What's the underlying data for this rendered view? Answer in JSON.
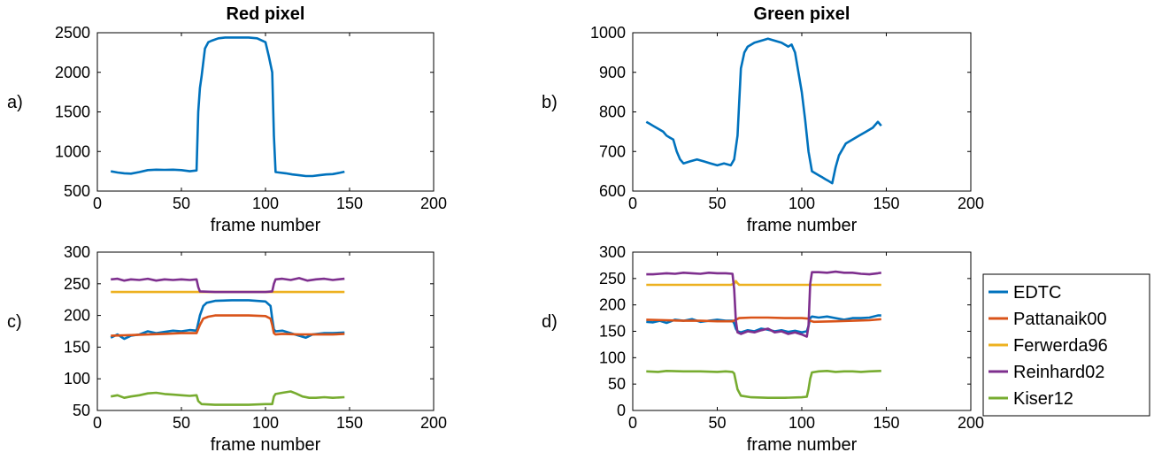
{
  "chart_data": [
    {
      "type": "line",
      "panel": "a)",
      "title": "Red pixel",
      "xlabel": "frame number",
      "ylabel": "",
      "xlim": [
        0,
        200
      ],
      "ylim": [
        500,
        2500
      ],
      "xticks": [
        0,
        50,
        100,
        150,
        200
      ],
      "yticks": [
        500,
        1000,
        1500,
        2000,
        2500
      ],
      "grid": false,
      "series": [
        {
          "color": "#0072BD",
          "x": [
            8,
            12,
            16,
            20,
            25,
            30,
            35,
            40,
            45,
            50,
            55,
            59,
            60,
            61,
            62,
            64,
            66,
            68,
            72,
            76,
            80,
            85,
            90,
            95,
            100,
            102,
            104,
            105,
            106,
            108,
            112,
            116,
            120,
            124,
            128,
            132,
            136,
            140,
            144,
            147
          ],
          "y": [
            750,
            735,
            725,
            720,
            740,
            765,
            770,
            768,
            770,
            765,
            750,
            760,
            1500,
            1800,
            1950,
            2300,
            2380,
            2400,
            2430,
            2440,
            2440,
            2440,
            2440,
            2430,
            2380,
            2200,
            2000,
            1200,
            740,
            735,
            725,
            710,
            700,
            690,
            690,
            700,
            710,
            715,
            730,
            745
          ]
        }
      ]
    },
    {
      "type": "line",
      "panel": "b)",
      "title": "Green pixel",
      "xlabel": "frame number",
      "ylabel": "",
      "xlim": [
        0,
        200
      ],
      "ylim": [
        600,
        1000
      ],
      "xticks": [
        0,
        50,
        100,
        150,
        200
      ],
      "yticks": [
        600,
        700,
        800,
        900,
        1000
      ],
      "grid": false,
      "series": [
        {
          "color": "#0072BD",
          "x": [
            8,
            10,
            12,
            14,
            16,
            18,
            20,
            22,
            24,
            26,
            28,
            30,
            34,
            38,
            42,
            46,
            50,
            54,
            58,
            60,
            62,
            64,
            66,
            68,
            72,
            76,
            80,
            84,
            88,
            92,
            94,
            96,
            98,
            100,
            102,
            104,
            106,
            108,
            110,
            112,
            114,
            116,
            118,
            120,
            122,
            126,
            130,
            134,
            138,
            142,
            145,
            147
          ],
          "y": [
            775,
            770,
            765,
            760,
            755,
            750,
            740,
            735,
            730,
            700,
            680,
            670,
            675,
            680,
            675,
            670,
            665,
            670,
            665,
            680,
            740,
            910,
            950,
            965,
            975,
            980,
            985,
            980,
            975,
            965,
            970,
            950,
            900,
            850,
            780,
            700,
            650,
            645,
            640,
            635,
            630,
            625,
            620,
            660,
            690,
            720,
            730,
            740,
            750,
            760,
            775,
            765
          ]
        }
      ]
    },
    {
      "type": "line",
      "panel": "c)",
      "title": "",
      "xlabel": "frame number",
      "ylabel": "",
      "xlim": [
        0,
        200
      ],
      "ylim": [
        50,
        300
      ],
      "xticks": [
        0,
        50,
        100,
        150,
        200
      ],
      "yticks": [
        50,
        100,
        150,
        200,
        250,
        300
      ],
      "grid": false,
      "series": [
        {
          "name": "EDTC",
          "color": "#0072BD",
          "x": [
            8,
            12,
            16,
            20,
            25,
            30,
            35,
            40,
            45,
            50,
            55,
            59,
            61,
            63,
            65,
            70,
            80,
            90,
            100,
            103,
            104,
            105,
            106,
            110,
            115,
            120,
            124,
            128,
            135,
            140,
            147
          ],
          "y": [
            165,
            170,
            163,
            168,
            170,
            175,
            172,
            174,
            176,
            175,
            177,
            176,
            200,
            215,
            220,
            223,
            224,
            224,
            222,
            215,
            195,
            178,
            175,
            176,
            172,
            168,
            165,
            170,
            172,
            172,
            173
          ]
        },
        {
          "name": "Pattanaik00",
          "color": "#D95319",
          "x": [
            8,
            20,
            30,
            40,
            50,
            59,
            61,
            63,
            66,
            70,
            80,
            90,
            100,
            103,
            104,
            105,
            106,
            110,
            120,
            130,
            140,
            147
          ],
          "y": [
            168,
            169,
            170,
            171,
            172,
            172,
            185,
            195,
            198,
            200,
            200,
            200,
            199,
            195,
            185,
            172,
            170,
            171,
            170,
            170,
            170,
            171
          ]
        },
        {
          "name": "Ferwerda96",
          "color": "#EDB120",
          "x": [
            8,
            147
          ],
          "y": [
            237,
            237
          ]
        },
        {
          "name": "Reinhard02",
          "color": "#7E2F8E",
          "x": [
            8,
            12,
            16,
            20,
            25,
            30,
            35,
            40,
            45,
            50,
            55,
            59,
            60,
            61,
            70,
            80,
            90,
            100,
            104,
            105,
            106,
            110,
            115,
            120,
            125,
            130,
            135,
            140,
            147
          ],
          "y": [
            257,
            258,
            255,
            257,
            256,
            258,
            255,
            257,
            256,
            257,
            256,
            257,
            245,
            238,
            237,
            237,
            237,
            237,
            238,
            250,
            257,
            258,
            256,
            259,
            255,
            257,
            258,
            256,
            258
          ]
        },
        {
          "name": "Kiser12",
          "color": "#77AC30",
          "x": [
            8,
            12,
            16,
            20,
            25,
            30,
            35,
            40,
            45,
            50,
            55,
            59,
            60,
            62,
            70,
            80,
            90,
            100,
            104,
            105,
            106,
            110,
            115,
            118,
            122,
            126,
            130,
            135,
            140,
            147
          ],
          "y": [
            72,
            74,
            70,
            72,
            74,
            77,
            78,
            76,
            75,
            74,
            73,
            74,
            65,
            60,
            59,
            59,
            59,
            60,
            60,
            72,
            76,
            78,
            80,
            77,
            72,
            70,
            70,
            71,
            70,
            71
          ]
        }
      ]
    },
    {
      "type": "line",
      "panel": "d)",
      "title": "",
      "xlabel": "frame number",
      "ylabel": "",
      "xlim": [
        0,
        200
      ],
      "ylim": [
        0,
        300
      ],
      "xticks": [
        0,
        50,
        100,
        150,
        200
      ],
      "yticks": [
        0,
        50,
        100,
        150,
        200,
        250,
        300
      ],
      "grid": false,
      "series": [
        {
          "name": "EDTC",
          "color": "#0072BD",
          "x": [
            8,
            12,
            16,
            20,
            25,
            30,
            35,
            40,
            45,
            50,
            55,
            59,
            60,
            61,
            62,
            64,
            68,
            72,
            76,
            80,
            84,
            88,
            92,
            96,
            100,
            103,
            104,
            105,
            106,
            110,
            115,
            120,
            125,
            130,
            135,
            140,
            145,
            147
          ],
          "y": [
            168,
            167,
            170,
            166,
            172,
            170,
            173,
            168,
            170,
            172,
            170,
            170,
            165,
            155,
            150,
            148,
            152,
            150,
            155,
            153,
            150,
            152,
            149,
            151,
            148,
            150,
            160,
            175,
            178,
            176,
            178,
            175,
            172,
            175,
            175,
            176,
            180,
            180
          ]
        },
        {
          "name": "Pattanaik00",
          "color": "#D95319",
          "x": [
            8,
            20,
            30,
            40,
            50,
            59,
            61,
            63,
            70,
            80,
            90,
            100,
            104,
            105,
            107,
            120,
            130,
            140,
            147
          ],
          "y": [
            172,
            171,
            170,
            170,
            169,
            169,
            172,
            175,
            176,
            176,
            175,
            175,
            174,
            170,
            168,
            169,
            170,
            171,
            173
          ]
        },
        {
          "name": "Ferwerda96",
          "color": "#EDB120",
          "x": [
            8,
            58,
            60,
            61,
            62,
            63,
            64,
            147
          ],
          "y": [
            238,
            238,
            240,
            245,
            241,
            238,
            238,
            238
          ]
        },
        {
          "name": "Reinhard02",
          "color": "#7E2F8E",
          "x": [
            8,
            12,
            16,
            20,
            25,
            30,
            35,
            40,
            45,
            50,
            55,
            59,
            60,
            61,
            62,
            64,
            68,
            72,
            76,
            80,
            84,
            88,
            92,
            96,
            100,
            103,
            104,
            105,
            106,
            110,
            115,
            120,
            125,
            130,
            135,
            140,
            145,
            147
          ],
          "y": [
            258,
            258,
            259,
            260,
            259,
            261,
            260,
            259,
            261,
            260,
            260,
            259,
            230,
            170,
            148,
            145,
            150,
            148,
            152,
            155,
            148,
            150,
            145,
            148,
            144,
            140,
            160,
            240,
            262,
            262,
            261,
            263,
            261,
            261,
            259,
            258,
            260,
            261
          ]
        },
        {
          "name": "Kiser12",
          "color": "#77AC30",
          "x": [
            8,
            15,
            20,
            30,
            40,
            50,
            55,
            59,
            60,
            61,
            62,
            64,
            70,
            80,
            90,
            100,
            103,
            104,
            105,
            106,
            110,
            115,
            120,
            125,
            130,
            135,
            140,
            147
          ],
          "y": [
            74,
            73,
            75,
            74,
            74,
            73,
            74,
            73,
            70,
            55,
            40,
            28,
            25,
            24,
            24,
            25,
            26,
            40,
            60,
            72,
            74,
            75,
            73,
            74,
            74,
            73,
            74,
            75
          ]
        }
      ]
    }
  ],
  "legend": {
    "placement": "right",
    "entries": [
      {
        "label": "EDTC",
        "color": "#0072BD"
      },
      {
        "label": "Pattanaik00",
        "color": "#D95319"
      },
      {
        "label": "Ferwerda96",
        "color": "#EDB120"
      },
      {
        "label": "Reinhard02",
        "color": "#7E2F8E"
      },
      {
        "label": "Kiser12",
        "color": "#77AC30"
      }
    ]
  }
}
